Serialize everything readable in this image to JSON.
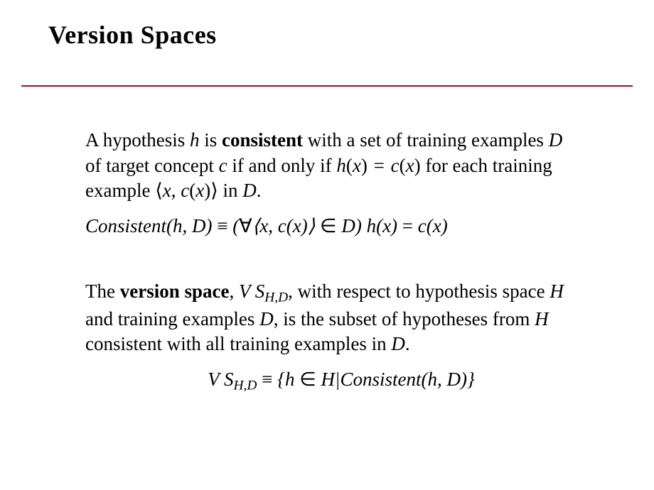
{
  "title": "Version Spaces",
  "rule_color": "#b00020",
  "body": {
    "p1_a": "A hypothesis ",
    "p1_h": "h",
    "p1_b": " is ",
    "p1_consistent": "consistent",
    "p1_c": " with a set of training examples ",
    "p1_D": "D",
    "p1_d": " of target concept ",
    "p1_cvar": "c",
    "p1_e": " if and only if ",
    "p1_hx": "h",
    "p1_lp1": "(",
    "p1_x1": "x",
    "p1_rp1": ")",
    "p1_eq": " = ",
    "p1_cx": "c",
    "p1_lp2": "(",
    "p1_x2": "x",
    "p1_rp2": ")",
    "p1_f": " for each training example ",
    "p1_lang": "⟨",
    "p1_x3": "x",
    "p1_comma": ", ",
    "p1_cx2": "c",
    "p1_lp3": "(",
    "p1_x4": "x",
    "p1_rp3": ")",
    "p1_rang": "⟩",
    "p1_g": " in ",
    "p1_D2": "D",
    "p1_period": "."
  },
  "eq1": {
    "Consistent": "Consistent",
    "lp": "(",
    "h": "h",
    "c1": ", ",
    "D": "D",
    "rp": ")",
    "equiv": " ≡ ",
    "lpar": "(",
    "forall": "∀",
    "lang": "⟨",
    "x": "x",
    "c2": ", ",
    "cfun": "c",
    "lpx": "(",
    "x2": "x",
    "rpx": ")",
    "rang": "⟩",
    "in": " ∈ ",
    "D2": "D",
    "rpar": ")",
    "sp": " ",
    "hfun": "h",
    "lpx2": "(",
    "x3": "x",
    "rpx2": ")",
    "eq": " = ",
    "cfun2": "c",
    "lpx3": "(",
    "x4": "x",
    "rpx3": ")"
  },
  "p2": {
    "a": "The ",
    "vs_bold": "version space",
    "b": ", ",
    "VS": "V S",
    "sub": "H,D",
    "c": ", with respect to hypothesis space ",
    "H": "H",
    "d": " and training examples ",
    "D": "D",
    "e": ", is the subset of hypotheses from ",
    "H2": "H",
    "f": " consistent with all training examples in ",
    "D2": "D",
    "period": "."
  },
  "eq2": {
    "VS": "V S",
    "sub": "H,D",
    "equiv": " ≡ ",
    "lb": "{",
    "h": "h",
    "in": " ∈ ",
    "H": "H",
    "bar": "|",
    "Consistent": "Consistent",
    "lp": "(",
    "h2": "h",
    "c": ", ",
    "D": "D",
    "rp": ")",
    "rb": "}"
  }
}
